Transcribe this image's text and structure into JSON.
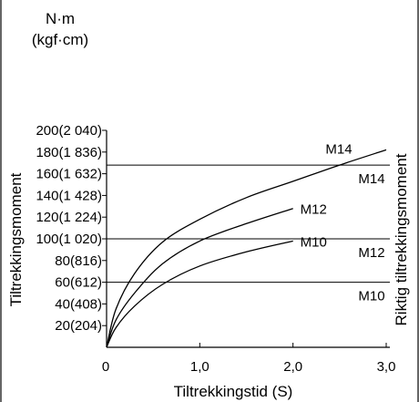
{
  "unit_label": "N·m",
  "unit_label_alt": "(kgf·cm)",
  "chart_data": {
    "type": "line",
    "xlabel": "Tiltrekkingstid (S)",
    "ylabel": "Tiltrekkingsmoment",
    "y2label": "Riktig tiltrekkingsmoment",
    "xlim": [
      0,
      3.0
    ],
    "ylim": [
      0,
      200
    ],
    "x_ticks": [
      {
        "value": 0,
        "label": "0"
      },
      {
        "value": 1.0,
        "label": "1,0"
      },
      {
        "value": 2.0,
        "label": "2,0"
      },
      {
        "value": 3.0,
        "label": "3,0"
      }
    ],
    "y_ticks": [
      {
        "value": 20,
        "label": "20(204)"
      },
      {
        "value": 40,
        "label": "40(408)"
      },
      {
        "value": 60,
        "label": "60(612)"
      },
      {
        "value": 80,
        "label": "80(816)"
      },
      {
        "value": 100,
        "label": "100(1 020)"
      },
      {
        "value": 120,
        "label": "120(1 224)"
      },
      {
        "value": 140,
        "label": "140(1 428)"
      },
      {
        "value": 160,
        "label": "160(1 632)"
      },
      {
        "value": 180,
        "label": "180(1 836)"
      },
      {
        "value": 200,
        "label": "200(2 040)"
      }
    ],
    "series": [
      {
        "name": "M14",
        "x": [
          0,
          0.1,
          0.3,
          0.6,
          1.0,
          1.5,
          2.0,
          2.5,
          3.0
        ],
        "y": [
          0,
          35,
          68,
          97,
          118,
          138,
          153,
          168,
          182
        ]
      },
      {
        "name": "M12",
        "x": [
          0,
          0.1,
          0.3,
          0.6,
          1.0,
          1.5,
          2.0
        ],
        "y": [
          0,
          25,
          50,
          77,
          98,
          114,
          128
        ]
      },
      {
        "name": "M10",
        "x": [
          0,
          0.1,
          0.3,
          0.6,
          1.0,
          1.5,
          2.0
        ],
        "y": [
          0,
          18,
          38,
          58,
          75,
          88,
          98
        ]
      }
    ],
    "reference_lines": [
      {
        "name": "M14",
        "y": 168
      },
      {
        "name": "M12",
        "y": 100
      },
      {
        "name": "M10",
        "y": 60
      }
    ]
  }
}
